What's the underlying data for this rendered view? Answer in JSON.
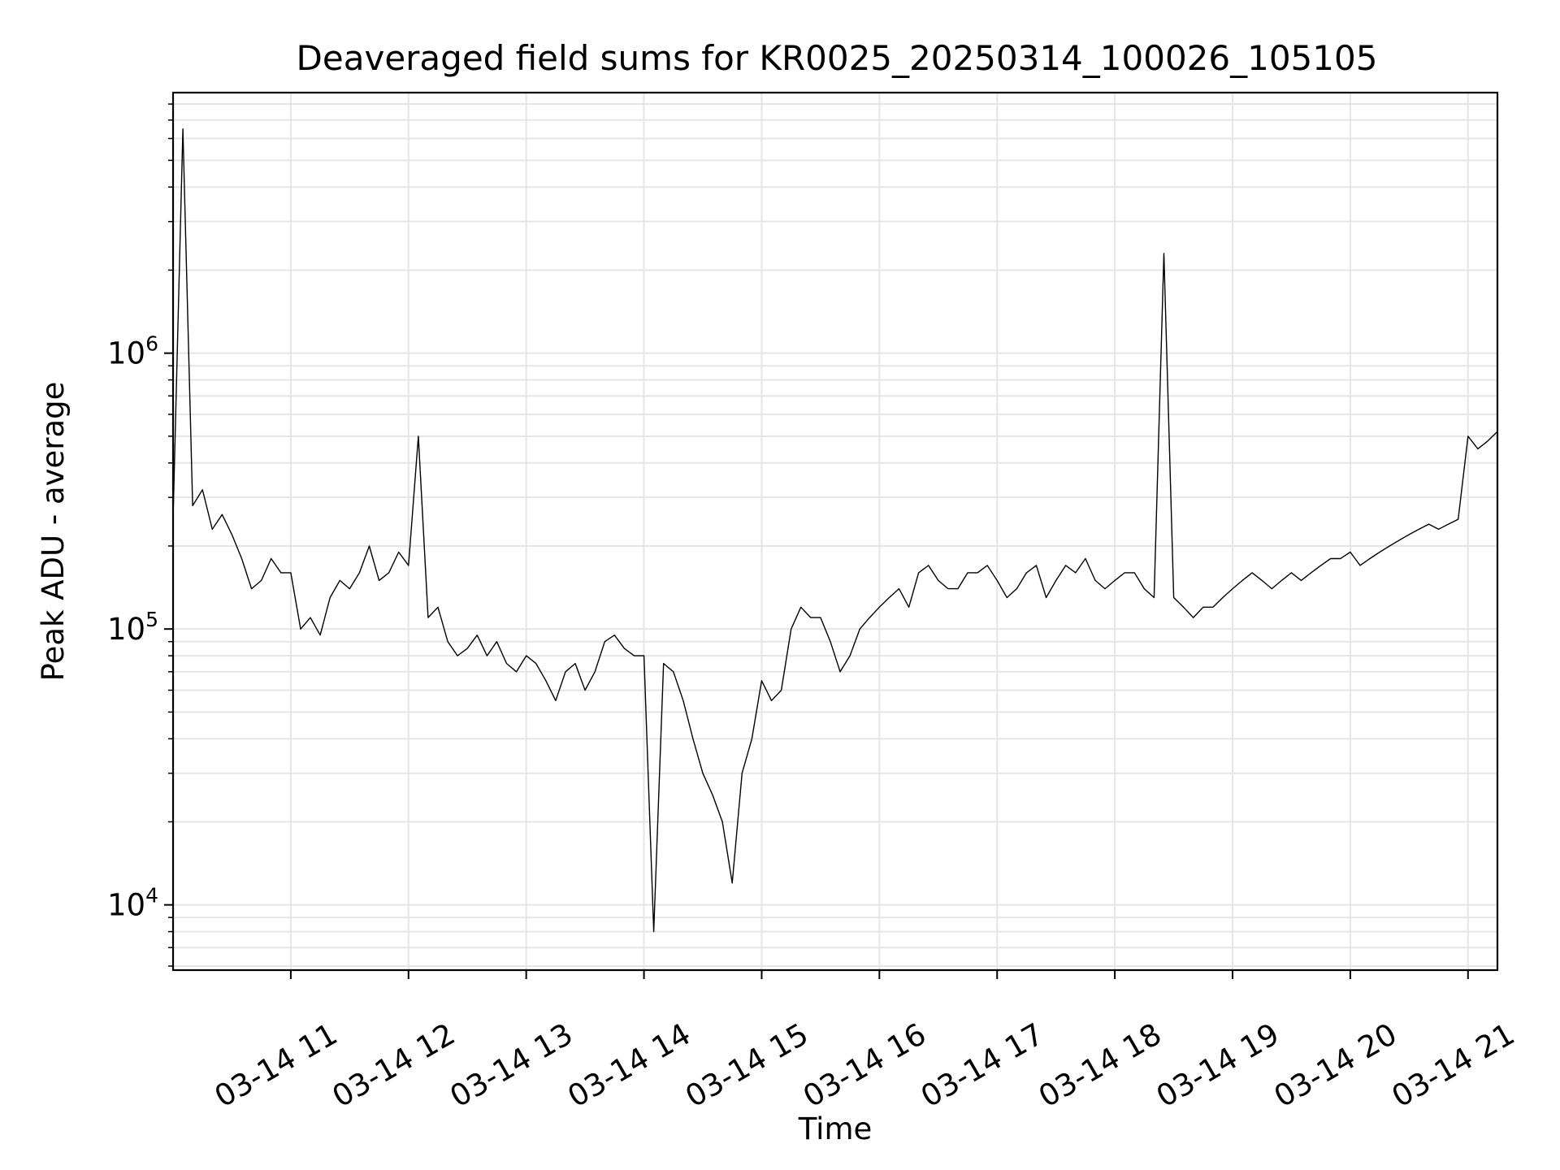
{
  "chart_data": {
    "type": "line",
    "title": "Deaveraged field sums for KR0025_20250314_100026_105105",
    "xlabel": "Time",
    "ylabel": "Peak ADU - average",
    "y_scale": "log",
    "ylim": [
      5800,
      8800000
    ],
    "xlim": [
      "2025-03-14 10:00",
      "2025-03-14 21:15"
    ],
    "grid": true,
    "legend": false,
    "line_color": "#000000",
    "grid_color": "#e5e5e5",
    "x_ticks": [
      {
        "t": "2025-03-14 11:00",
        "label": "03-14 11"
      },
      {
        "t": "2025-03-14 12:00",
        "label": "03-14 12"
      },
      {
        "t": "2025-03-14 13:00",
        "label": "03-14 13"
      },
      {
        "t": "2025-03-14 14:00",
        "label": "03-14 14"
      },
      {
        "t": "2025-03-14 15:00",
        "label": "03-14 15"
      },
      {
        "t": "2025-03-14 16:00",
        "label": "03-14 16"
      },
      {
        "t": "2025-03-14 17:00",
        "label": "03-14 17"
      },
      {
        "t": "2025-03-14 18:00",
        "label": "03-14 18"
      },
      {
        "t": "2025-03-14 19:00",
        "label": "03-14 19"
      },
      {
        "t": "2025-03-14 20:00",
        "label": "03-14 20"
      },
      {
        "t": "2025-03-14 21:00",
        "label": "03-14 21"
      }
    ],
    "y_ticks": [
      {
        "value": 10000,
        "base": "10",
        "exp": "4"
      },
      {
        "value": 100000,
        "base": "10",
        "exp": "5"
      },
      {
        "value": 1000000,
        "base": "10",
        "exp": "6"
      }
    ],
    "x": [
      "2025-03-14 10:00",
      "2025-03-14 10:05",
      "2025-03-14 10:10",
      "2025-03-14 10:15",
      "2025-03-14 10:20",
      "2025-03-14 10:25",
      "2025-03-14 10:30",
      "2025-03-14 10:35",
      "2025-03-14 10:40",
      "2025-03-14 10:45",
      "2025-03-14 10:50",
      "2025-03-14 10:55",
      "2025-03-14 11:00",
      "2025-03-14 11:05",
      "2025-03-14 11:10",
      "2025-03-14 11:15",
      "2025-03-14 11:20",
      "2025-03-14 11:25",
      "2025-03-14 11:30",
      "2025-03-14 11:35",
      "2025-03-14 11:40",
      "2025-03-14 11:45",
      "2025-03-14 11:50",
      "2025-03-14 11:55",
      "2025-03-14 12:00",
      "2025-03-14 12:05",
      "2025-03-14 12:10",
      "2025-03-14 12:15",
      "2025-03-14 12:20",
      "2025-03-14 12:25",
      "2025-03-14 12:30",
      "2025-03-14 12:35",
      "2025-03-14 12:40",
      "2025-03-14 12:45",
      "2025-03-14 12:50",
      "2025-03-14 12:55",
      "2025-03-14 13:00",
      "2025-03-14 13:05",
      "2025-03-14 13:10",
      "2025-03-14 13:15",
      "2025-03-14 13:20",
      "2025-03-14 13:25",
      "2025-03-14 13:30",
      "2025-03-14 13:35",
      "2025-03-14 13:40",
      "2025-03-14 13:45",
      "2025-03-14 13:50",
      "2025-03-14 13:55",
      "2025-03-14 14:00",
      "2025-03-14 14:05",
      "2025-03-14 14:10",
      "2025-03-14 14:15",
      "2025-03-14 14:20",
      "2025-03-14 14:25",
      "2025-03-14 14:30",
      "2025-03-14 14:35",
      "2025-03-14 14:40",
      "2025-03-14 14:45",
      "2025-03-14 14:50",
      "2025-03-14 14:55",
      "2025-03-14 15:00",
      "2025-03-14 15:05",
      "2025-03-14 15:10",
      "2025-03-14 15:15",
      "2025-03-14 15:20",
      "2025-03-14 15:25",
      "2025-03-14 15:30",
      "2025-03-14 15:35",
      "2025-03-14 15:40",
      "2025-03-14 15:45",
      "2025-03-14 15:50",
      "2025-03-14 15:55",
      "2025-03-14 16:00",
      "2025-03-14 16:05",
      "2025-03-14 16:10",
      "2025-03-14 16:15",
      "2025-03-14 16:20",
      "2025-03-14 16:25",
      "2025-03-14 16:30",
      "2025-03-14 16:35",
      "2025-03-14 16:40",
      "2025-03-14 16:45",
      "2025-03-14 16:50",
      "2025-03-14 16:55",
      "2025-03-14 17:00",
      "2025-03-14 17:05",
      "2025-03-14 17:10",
      "2025-03-14 17:15",
      "2025-03-14 17:20",
      "2025-03-14 17:25",
      "2025-03-14 17:30",
      "2025-03-14 17:35",
      "2025-03-14 17:40",
      "2025-03-14 17:45",
      "2025-03-14 17:50",
      "2025-03-14 17:55",
      "2025-03-14 18:00",
      "2025-03-14 18:05",
      "2025-03-14 18:10",
      "2025-03-14 18:15",
      "2025-03-14 18:20",
      "2025-03-14 18:25",
      "2025-03-14 18:30",
      "2025-03-14 18:35",
      "2025-03-14 18:40",
      "2025-03-14 18:45",
      "2025-03-14 18:50",
      "2025-03-14 18:55",
      "2025-03-14 19:00",
      "2025-03-14 19:05",
      "2025-03-14 19:10",
      "2025-03-14 19:15",
      "2025-03-14 19:20",
      "2025-03-14 19:25",
      "2025-03-14 19:30",
      "2025-03-14 19:35",
      "2025-03-14 19:40",
      "2025-03-14 19:45",
      "2025-03-14 19:50",
      "2025-03-14 19:55",
      "2025-03-14 20:00",
      "2025-03-14 20:05",
      "2025-03-14 20:10",
      "2025-03-14 20:15",
      "2025-03-14 20:20",
      "2025-03-14 20:25",
      "2025-03-14 20:30",
      "2025-03-14 20:35",
      "2025-03-14 20:40",
      "2025-03-14 20:45",
      "2025-03-14 20:50",
      "2025-03-14 20:55",
      "2025-03-14 21:00",
      "2025-03-14 21:05",
      "2025-03-14 21:10",
      "2025-03-14 21:15"
    ],
    "series": [
      {
        "values": [
          250000,
          6500000,
          280000,
          320000,
          230000,
          260000,
          220000,
          180000,
          140000,
          150000,
          180000,
          160000,
          160000,
          100000,
          110000,
          95000,
          130000,
          150000,
          140000,
          160000,
          200000,
          150000,
          160000,
          190000,
          170000,
          500000,
          110000,
          120000,
          90000,
          80000,
          85000,
          95000,
          80000,
          90000,
          75000,
          70000,
          80000,
          75000,
          65000,
          55000,
          70000,
          75000,
          60000,
          70000,
          90000,
          95000,
          85000,
          80000,
          80000,
          8000,
          75000,
          70000,
          55000,
          40000,
          30000,
          25000,
          20000,
          12000,
          30000,
          40000,
          65000,
          55000,
          60000,
          100000,
          120000,
          110000,
          110000,
          90000,
          70000,
          80000,
          100000,
          110000,
          120000,
          130000,
          140000,
          120000,
          160000,
          170000,
          150000,
          140000,
          140000,
          160000,
          160000,
          170000,
          150000,
          130000,
          140000,
          160000,
          170000,
          130000,
          150000,
          170000,
          160000,
          180000,
          150000,
          140000,
          150000,
          160000,
          160000,
          140000,
          130000,
          2300000,
          130000,
          120000,
          110000,
          120000,
          120000,
          130000,
          140000,
          150000,
          160000,
          150000,
          140000,
          150000,
          160000,
          150000,
          160000,
          170000,
          180000,
          180000,
          190000,
          170000,
          180000,
          190000,
          200000,
          210000,
          220000,
          230000,
          240000,
          230000,
          240000,
          250000,
          500000,
          450000,
          480000,
          520000
        ]
      }
    ]
  }
}
